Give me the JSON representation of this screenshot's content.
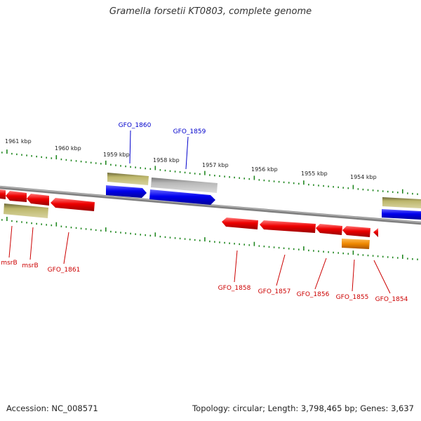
{
  "title": "Gramella forsetii KT0803, complete genome",
  "footer": {
    "accession": "Accession: NC_008571",
    "summary": "Topology: circular; Length: 3,798,465 bp; Genes: 3,637"
  },
  "colors": {
    "cds_red": "#ee0000",
    "cds_blue": "#0000ee",
    "cds_khaki": "#bdb76b",
    "cds_gray": "#b0b0b0",
    "cds_orange": "#ee8800",
    "label_red": "#cc0000",
    "label_blue": "#0000cc",
    "backbone": "#808080",
    "tick": "#228822"
  },
  "scale_labels": [
    "1961 kbp",
    "1960 kbp",
    "1959 kbp",
    "1958 kbp",
    "1957 kbp",
    "1956 kbp",
    "1955 kbp",
    "1954 kbp"
  ],
  "genes": {
    "top": [
      "GFO_1860",
      "GFO_1859"
    ],
    "bottom": [
      "msrB",
      "msrB",
      "GFO_1861",
      "GFO_1858",
      "GFO_1857",
      "GFO_1856",
      "GFO_1855",
      "GFO_1854"
    ]
  }
}
